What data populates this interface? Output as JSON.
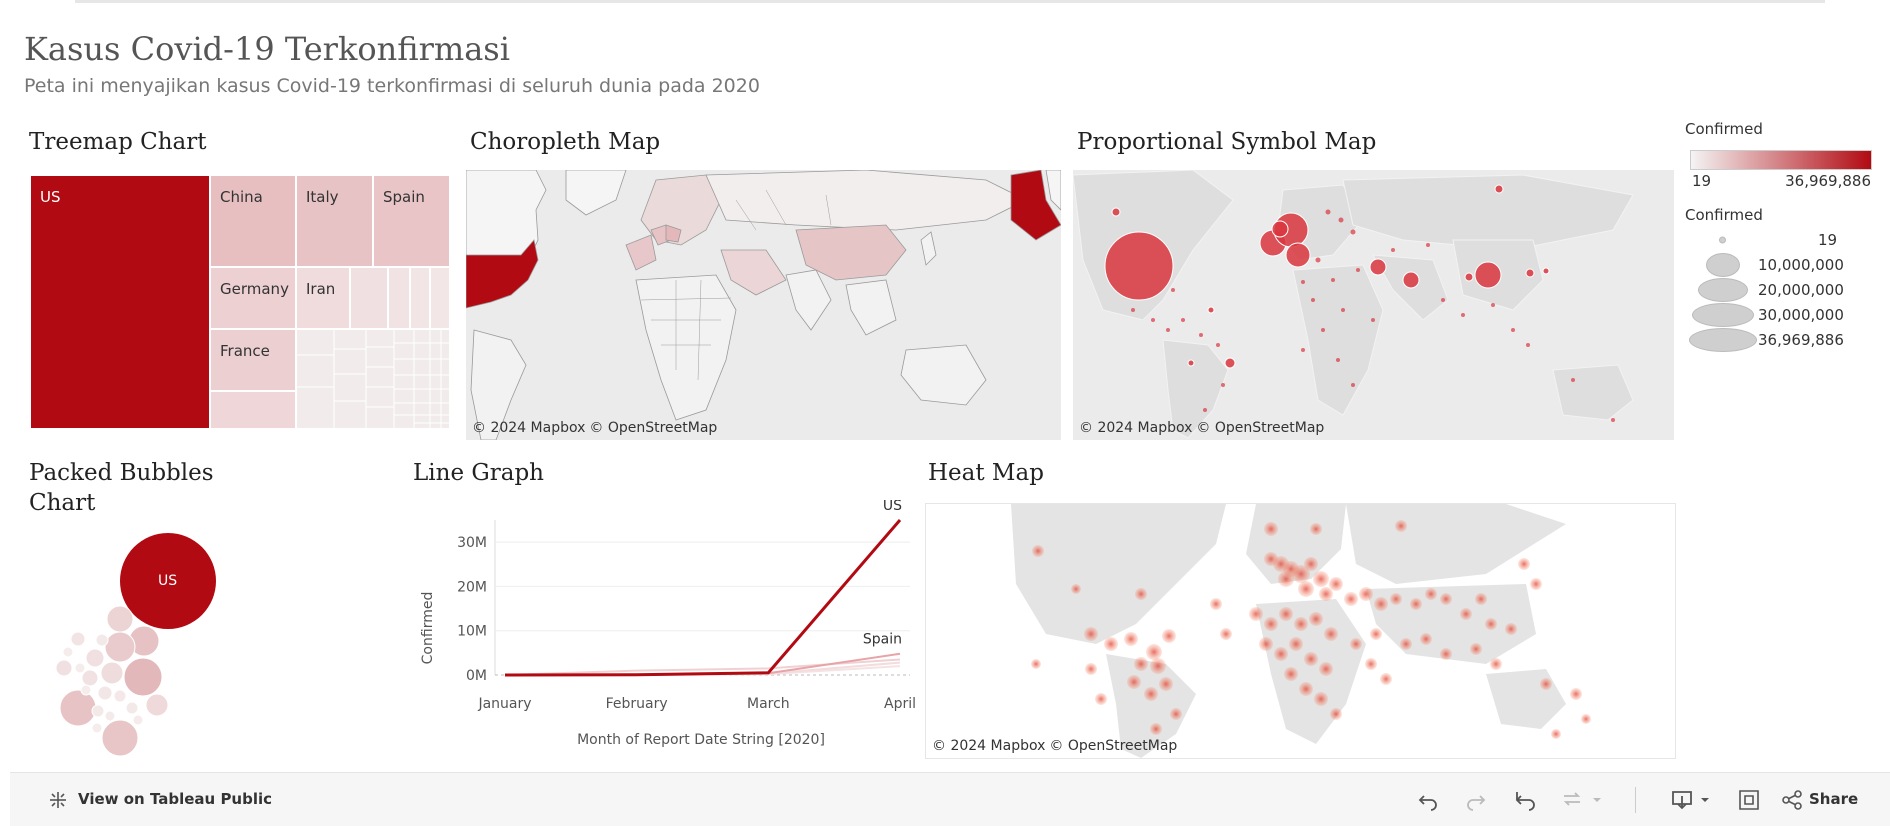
{
  "page": {
    "title": "Kasus Covid-19 Terkonfirmasi",
    "subtitle": "Peta ini menyajikan kasus Covid-19 terkonfirmasi di seluruh dunia pada 2020"
  },
  "panels": {
    "treemap": "Treemap Chart",
    "choropleth": "Choropleth Map",
    "proportional": "Proportional Symbol Map",
    "bubbles_line1": "Packed Bubbles",
    "bubbles_line2": "Chart",
    "line": "Line Graph",
    "heat": "Heat Map"
  },
  "treemap": {
    "labels": [
      "US",
      "China",
      "Italy",
      "Spain",
      "Germany",
      "Iran",
      "France"
    ]
  },
  "attribution": {
    "mapbox": "© 2024 Mapbox",
    "osm": "© OpenStreetMap"
  },
  "legend": {
    "color_title": "Confirmed",
    "color_min": "19",
    "color_max": "36,969,886",
    "size_title": "Confirmed",
    "sizes": [
      "19",
      "10,000,000",
      "20,000,000",
      "30,000,000",
      "36,969,886"
    ]
  },
  "bubbles": {
    "label": "US"
  },
  "chart_data": {
    "type": "line",
    "categories": [
      "January",
      "February",
      "March",
      "April"
    ],
    "xlabel": "Month of Report Date String [2020]",
    "ylabel": "Confirmed",
    "yticks": [
      "0M",
      "10M",
      "20M",
      "30M"
    ],
    "ylim": [
      0,
      35000000
    ],
    "series": [
      {
        "name": "US",
        "values": [
          0,
          50000,
          500000,
          35000000
        ],
        "color": "#b20a12"
      },
      {
        "name": "Spain",
        "values": [
          0,
          30000,
          400000,
          4800000
        ],
        "color": "#e6a4a8"
      },
      {
        "values": [
          0,
          1000000,
          1500000,
          3500000
        ],
        "color": "#f0d0d2"
      },
      {
        "values": [
          0,
          20000,
          300000,
          2800000
        ],
        "color": "#f3dcde"
      },
      {
        "values": [
          0,
          10000,
          200000,
          2000000
        ],
        "color": "#f5e3e4"
      }
    ]
  },
  "toolbar": {
    "view_label": "View on Tableau Public",
    "share_label": "Share"
  },
  "colors": {
    "accent": "#b20a12",
    "light": "#e8c0c2",
    "map_bg": "#ebebeb"
  }
}
